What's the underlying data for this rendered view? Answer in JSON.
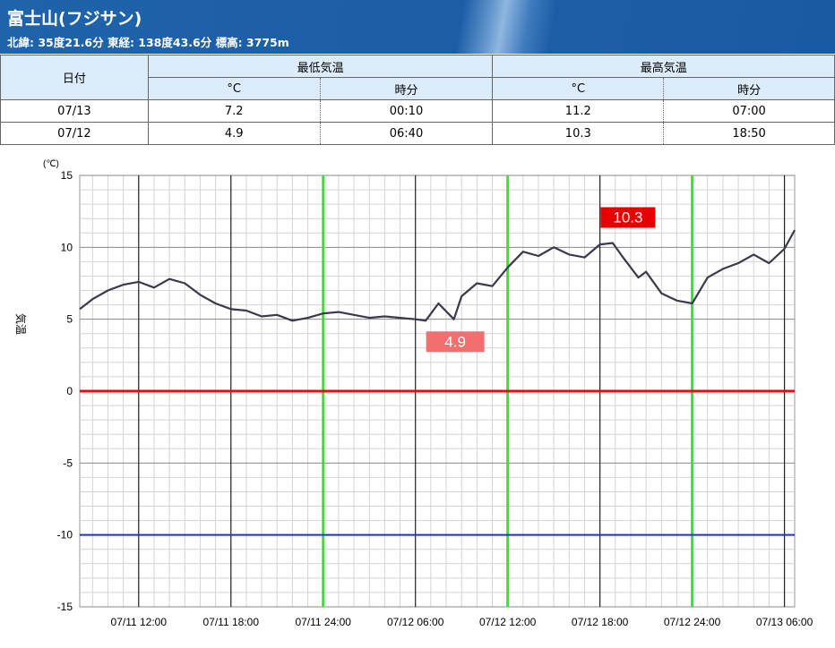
{
  "header": {
    "title": "富士山(フジサン)",
    "subtitle": "北緯: 35度21.6分 東経: 138度43.6分 標高: 3775m"
  },
  "summary_table": {
    "date_header": "日付",
    "min_header": "最低気温",
    "max_header": "最高気温",
    "unit_c": "°C",
    "unit_time": "時分",
    "rows": [
      {
        "date": "07/13",
        "min_c": "7.2",
        "min_time": "00:10",
        "max_c": "11.2",
        "max_time": "07:00"
      },
      {
        "date": "07/12",
        "min_c": "4.9",
        "min_time": "06:40",
        "max_c": "10.3",
        "max_time": "18:50"
      }
    ]
  },
  "colors": {
    "header_bg": "#1c5ea6",
    "table_header_bg": "#dcecfb",
    "series_line": "#3a3a4a",
    "zero_line": "#e01010",
    "minus10_line": "#2030d0",
    "day_boundary": "#33e633",
    "max_label_bg": "#e60000",
    "min_label_bg": "#f07070"
  },
  "chart_data": {
    "type": "line",
    "ylabel": "気温",
    "yunit": "(℃)",
    "ylim": [
      -15,
      15
    ],
    "yticks": [
      15,
      10,
      5,
      0,
      -5,
      -10,
      -15
    ],
    "xlim": [
      "07/11 08:10",
      "07/13 06:40"
    ],
    "xticks": [
      "07/11 12:00",
      "07/11 18:00",
      "07/11 24:00",
      "07/12 06:00",
      "07/12 12:00",
      "07/12 18:00",
      "07/12 24:00",
      "07/13 06:00"
    ],
    "grid": true,
    "reference_lines": [
      {
        "y": 0,
        "color": "#e01010"
      },
      {
        "y": -10,
        "color": "#2030d0"
      }
    ],
    "day_boundaries": [
      "07/11 24:00",
      "07/12 12:00",
      "07/12 24:00"
    ],
    "annotations": [
      {
        "label": "10.3",
        "type": "max",
        "x": "07/12 18:50",
        "y": 10.3
      },
      {
        "label": "4.9",
        "type": "min",
        "x": "07/12 06:40",
        "y": 4.9
      }
    ],
    "series": [
      {
        "x": [
          "07/11 08:10",
          "07/11 09:00",
          "07/11 10:00",
          "07/11 11:00",
          "07/11 12:00",
          "07/11 13:00",
          "07/11 14:00",
          "07/11 15:00",
          "07/11 16:00",
          "07/11 17:00",
          "07/11 18:00",
          "07/11 19:00",
          "07/11 20:00",
          "07/11 21:00",
          "07/11 22:00",
          "07/11 23:00",
          "07/11 24:00",
          "07/12 01:00",
          "07/12 02:00",
          "07/12 03:00",
          "07/12 04:00",
          "07/12 05:00",
          "07/12 06:00",
          "07/12 06:40",
          "07/12 07:30",
          "07/12 08:30",
          "07/12 09:00",
          "07/12 10:00",
          "07/12 11:00",
          "07/12 12:00",
          "07/12 13:00",
          "07/12 14:00",
          "07/12 15:00",
          "07/12 16:00",
          "07/12 17:00",
          "07/12 18:00",
          "07/12 18:50",
          "07/12 19:30",
          "07/12 20:30",
          "07/12 21:00",
          "07/12 22:00",
          "07/12 23:00",
          "07/12 24:00",
          "07/13 01:00",
          "07/13 02:00",
          "07/13 03:00",
          "07/13 04:00",
          "07/13 05:00",
          "07/13 06:00",
          "07/13 06:40"
        ],
        "y": [
          5.7,
          6.4,
          7.0,
          7.4,
          7.6,
          7.2,
          7.8,
          7.5,
          6.7,
          6.1,
          5.7,
          5.6,
          5.2,
          5.3,
          4.9,
          5.1,
          5.4,
          5.5,
          5.3,
          5.1,
          5.2,
          5.1,
          5.0,
          4.9,
          6.1,
          5.0,
          6.6,
          7.5,
          7.3,
          8.6,
          9.7,
          9.4,
          10.0,
          9.5,
          9.3,
          10.2,
          10.3,
          9.3,
          7.9,
          8.3,
          6.8,
          6.3,
          6.1,
          7.9,
          8.5,
          8.9,
          9.5,
          8.9,
          9.9,
          11.2
        ]
      }
    ]
  }
}
